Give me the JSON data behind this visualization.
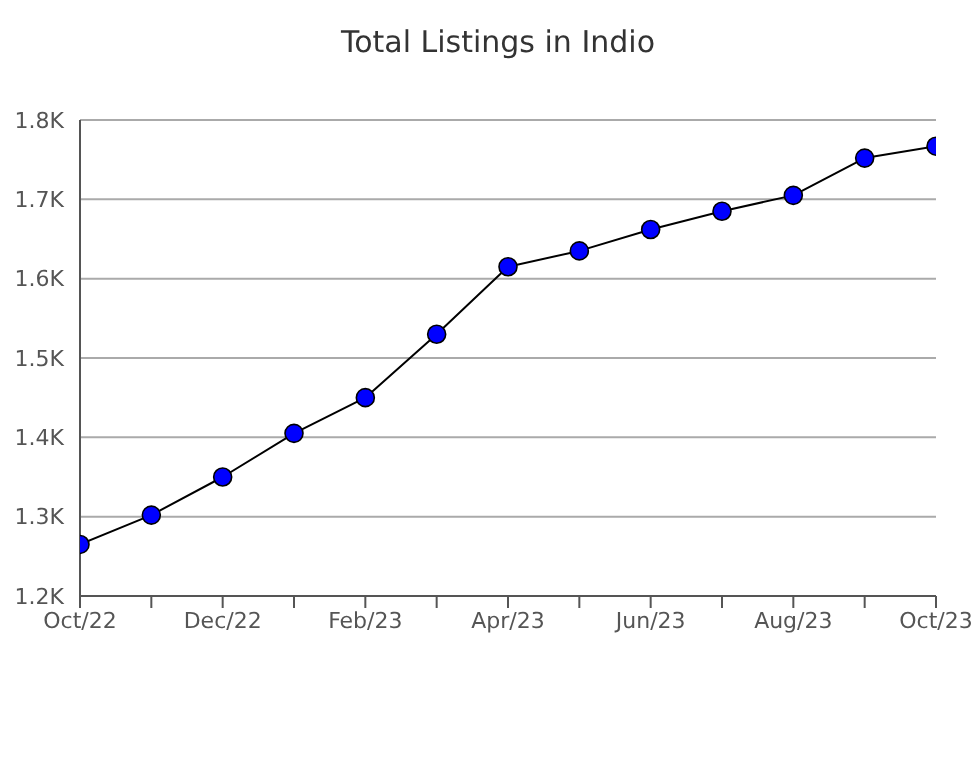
{
  "chart_data": {
    "type": "line",
    "title": "Total Listings in Indio",
    "categories": [
      "Oct/22",
      null,
      "Dec/22",
      null,
      "Feb/23",
      null,
      "Apr/23",
      null,
      "Jun/23",
      null,
      "Aug/23",
      null,
      "Oct/23"
    ],
    "series": [
      {
        "color": "#0000ff",
        "values": [
          1265,
          1302,
          1350,
          1405,
          1450,
          1530,
          1615,
          1635,
          1662,
          1685,
          1705,
          1752,
          1767
        ]
      }
    ],
    "ylim": [
      1200,
      1800
    ],
    "yticks": [
      {
        "value": 1200,
        "label": "1.2K"
      },
      {
        "value": 1300,
        "label": "1.3K"
      },
      {
        "value": 1400,
        "label": "1.4K"
      },
      {
        "value": 1500,
        "label": "1.5K"
      },
      {
        "value": 1600,
        "label": "1.6K"
      },
      {
        "value": 1700,
        "label": "1.7K"
      },
      {
        "value": 1800,
        "label": "1.8K"
      }
    ],
    "grid": "y",
    "marker": "circle",
    "line_style": "solid"
  }
}
